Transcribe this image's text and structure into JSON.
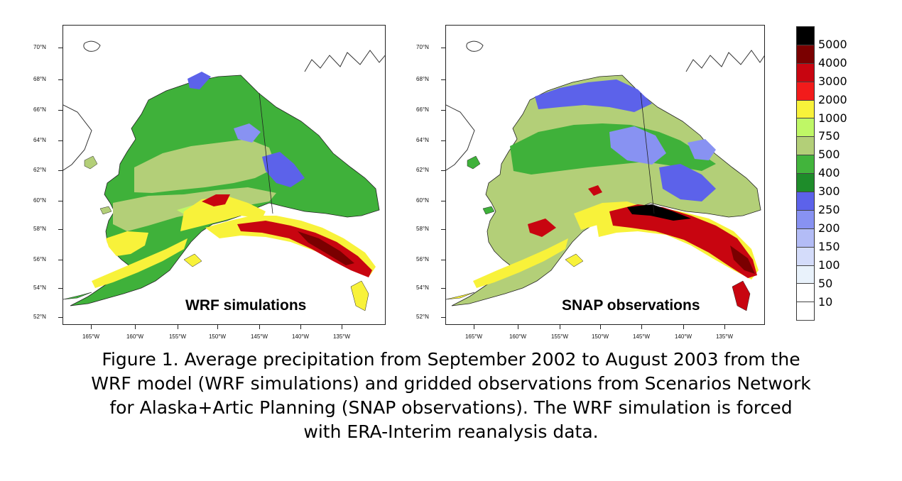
{
  "panels": {
    "left": {
      "title": "WRF simulations"
    },
    "right": {
      "title": "SNAP observations"
    }
  },
  "axes": {
    "lat_ticks": [
      "70°N",
      "68°N",
      "66°N",
      "64°N",
      "62°N",
      "60°N",
      "58°N",
      "56°N",
      "54°N",
      "52°N"
    ],
    "lon_ticks": [
      "165°W",
      "160°W",
      "155°W",
      "150°W",
      "145°W",
      "140°W",
      "135°W"
    ]
  },
  "legend": {
    "labels": [
      "5000",
      "4000",
      "3000",
      "2000",
      "1000",
      "750",
      "500",
      "400",
      "300",
      "250",
      "200",
      "150",
      "100",
      "50",
      "10"
    ],
    "colors": [
      "#000000",
      "#7a0000",
      "#c80510",
      "#f21b1b",
      "#f8f23a",
      "#bff766",
      "#b3cf78",
      "#42b43c",
      "#1e8c2a",
      "#5c62ea",
      "#8892f2",
      "#b3bcf6",
      "#d4dcfa",
      "#e9f2fb",
      "#ffffff",
      "#ffffff"
    ]
  },
  "caption": {
    "lines": [
      "Figure 1.  Average precipitation from September 2002 to August 2003 from the",
      "WRF model (WRF simulations) and gridded observations from Scenarios Network",
      "for Alaska+Artic Planning (SNAP observations). The WRF simulation is forced",
      "with ERA-Interim reanalysis data."
    ]
  }
}
